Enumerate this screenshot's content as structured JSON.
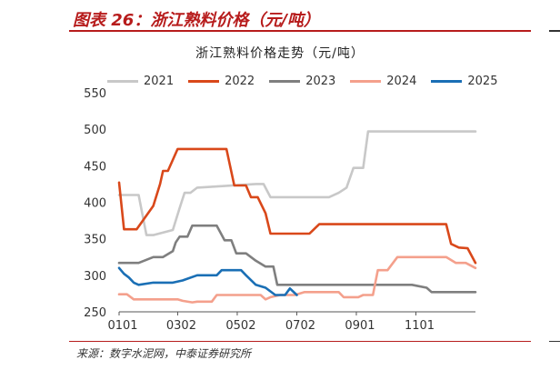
{
  "figure_title": "图表 26：浙江熟料价格（元/吨）",
  "source": "来源：数字水泥网，中泰证券研究所",
  "chart_data": {
    "type": "line",
    "title": "浙江熟料价格走势（元/吨）",
    "xlabel": "",
    "ylabel": "",
    "ylim": [
      250,
      550
    ],
    "yticks": [
      250,
      300,
      350,
      400,
      450,
      500,
      550
    ],
    "xlim": [
      0,
      365
    ],
    "xticks": [
      {
        "label": "0101",
        "x": 0
      },
      {
        "label": "0302",
        "x": 60
      },
      {
        "label": "0502",
        "x": 121
      },
      {
        "label": "0702",
        "x": 182
      },
      {
        "label": "0901",
        "x": 243
      },
      {
        "label": "1101",
        "x": 304
      }
    ],
    "grid": false,
    "legend_position": "top",
    "series": [
      {
        "name": "2021",
        "color": "#c8c8c8",
        "points": [
          [
            0,
            410
          ],
          [
            20,
            410
          ],
          [
            28,
            355
          ],
          [
            35,
            355
          ],
          [
            55,
            362
          ],
          [
            62,
            392
          ],
          [
            67,
            413
          ],
          [
            73,
            413
          ],
          [
            80,
            420
          ],
          [
            140,
            425
          ],
          [
            148,
            425
          ],
          [
            155,
            407
          ],
          [
            200,
            407
          ],
          [
            215,
            407
          ],
          [
            225,
            413
          ],
          [
            233,
            420
          ],
          [
            240,
            447
          ],
          [
            250,
            447
          ],
          [
            255,
            497
          ],
          [
            365,
            497
          ]
        ]
      },
      {
        "name": "2022",
        "color": "#d9481a",
        "points": [
          [
            0,
            427
          ],
          [
            5,
            363
          ],
          [
            18,
            363
          ],
          [
            35,
            395
          ],
          [
            42,
            425
          ],
          [
            45,
            443
          ],
          [
            50,
            443
          ],
          [
            60,
            473
          ],
          [
            110,
            473
          ],
          [
            118,
            423
          ],
          [
            130,
            423
          ],
          [
            135,
            407
          ],
          [
            142,
            407
          ],
          [
            150,
            385
          ],
          [
            155,
            357
          ],
          [
            190,
            357
          ],
          [
            195,
            357
          ],
          [
            205,
            370
          ],
          [
            335,
            370
          ],
          [
            340,
            343
          ],
          [
            348,
            338
          ],
          [
            357,
            337
          ],
          [
            365,
            317
          ]
        ]
      },
      {
        "name": "2023",
        "color": "#7f7f7f",
        "points": [
          [
            0,
            317
          ],
          [
            20,
            317
          ],
          [
            35,
            325
          ],
          [
            45,
            325
          ],
          [
            55,
            333
          ],
          [
            58,
            345
          ],
          [
            62,
            353
          ],
          [
            70,
            353
          ],
          [
            75,
            368
          ],
          [
            95,
            368
          ],
          [
            100,
            368
          ],
          [
            108,
            348
          ],
          [
            115,
            348
          ],
          [
            120,
            330
          ],
          [
            130,
            330
          ],
          [
            140,
            320
          ],
          [
            150,
            312
          ],
          [
            158,
            312
          ],
          [
            162,
            287
          ],
          [
            200,
            287
          ],
          [
            300,
            287
          ],
          [
            315,
            283
          ],
          [
            320,
            277
          ],
          [
            365,
            277
          ]
        ]
      },
      {
        "name": "2024",
        "color": "#f4a08c",
        "points": [
          [
            0,
            274
          ],
          [
            8,
            274
          ],
          [
            15,
            267
          ],
          [
            60,
            267
          ],
          [
            65,
            265
          ],
          [
            75,
            263
          ],
          [
            80,
            264
          ],
          [
            95,
            264
          ],
          [
            100,
            273
          ],
          [
            145,
            273
          ],
          [
            150,
            267
          ],
          [
            155,
            270
          ],
          [
            165,
            273
          ],
          [
            180,
            273
          ],
          [
            190,
            277
          ],
          [
            225,
            277
          ],
          [
            230,
            270
          ],
          [
            245,
            270
          ],
          [
            250,
            273
          ],
          [
            260,
            273
          ],
          [
            265,
            307
          ],
          [
            275,
            307
          ],
          [
            285,
            325
          ],
          [
            335,
            325
          ],
          [
            345,
            317
          ],
          [
            355,
            317
          ],
          [
            365,
            310
          ]
        ]
      },
      {
        "name": "2025",
        "color": "#1a6fb5",
        "points": [
          [
            0,
            310
          ],
          [
            5,
            302
          ],
          [
            10,
            297
          ],
          [
            15,
            290
          ],
          [
            20,
            287
          ],
          [
            35,
            290
          ],
          [
            55,
            290
          ],
          [
            65,
            293
          ],
          [
            80,
            300
          ],
          [
            90,
            300
          ],
          [
            100,
            300
          ],
          [
            105,
            307
          ],
          [
            125,
            307
          ],
          [
            130,
            300
          ],
          [
            140,
            287
          ],
          [
            150,
            283
          ],
          [
            160,
            273
          ],
          [
            170,
            273
          ],
          [
            175,
            282
          ],
          [
            182,
            273
          ]
        ]
      }
    ]
  }
}
